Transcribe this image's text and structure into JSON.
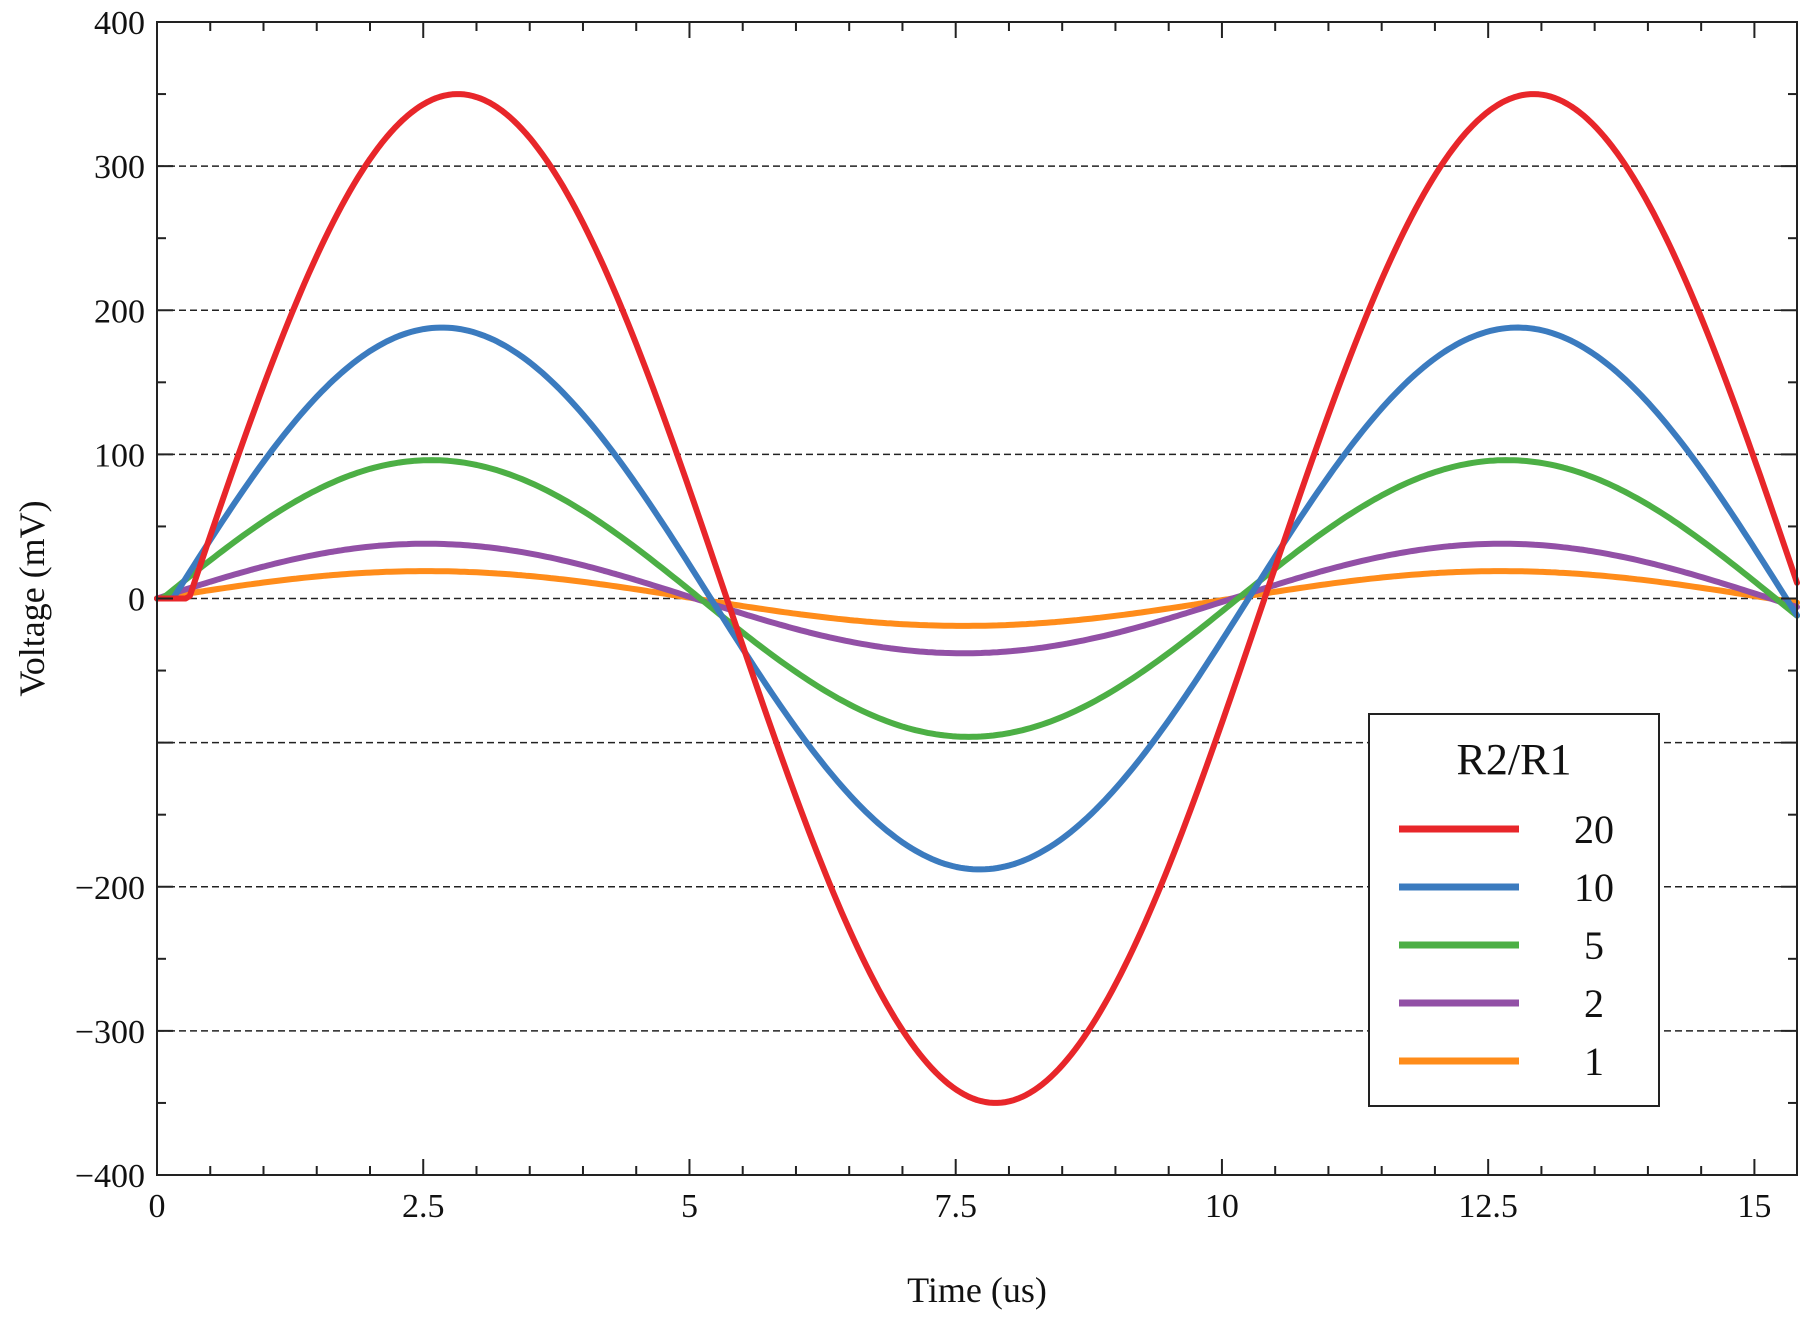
{
  "chart_data": {
    "type": "line",
    "title": "",
    "xlabel": "Time (us)",
    "ylabel": "Voltage (mV)",
    "xlim": [
      0,
      15.4
    ],
    "ylim": [
      -400,
      400
    ],
    "x_ticks": [
      0,
      2.5,
      5,
      7.5,
      10,
      12.5,
      15
    ],
    "x_tick_labels": [
      "0",
      "2.5",
      "5",
      "7.5",
      "10",
      "12.5",
      "15"
    ],
    "y_ticks": [
      -400,
      -300,
      -200,
      -100,
      0,
      100,
      200,
      300,
      400
    ],
    "y_tick_labels": [
      "−400",
      "−300",
      "−200",
      "",
      "0",
      "100",
      "200",
      "300",
      "400"
    ],
    "gridlines_y": [
      -300,
      -200,
      -100,
      0,
      100,
      200,
      300
    ],
    "grid": "horizontal dashed",
    "legend": {
      "title": "R2/R1",
      "placement": "bottom-right"
    },
    "period_us": 10.1,
    "series": [
      {
        "name": "20",
        "amplitude_mV": 350,
        "phase_lag_us": 0.3,
        "color": "#e8262a"
      },
      {
        "name": "10",
        "amplitude_mV": 188,
        "phase_lag_us": 0.15,
        "color": "#3b7bbf"
      },
      {
        "name": "5",
        "amplitude_mV": 96,
        "phase_lag_us": 0.05,
        "color": "#4caf45"
      },
      {
        "name": "2",
        "amplitude_mV": 38,
        "phase_lag_us": 0.0,
        "color": "#9250a6"
      },
      {
        "name": "1",
        "amplitude_mV": 19,
        "phase_lag_us": 0.0,
        "color": "#ff8c1a"
      }
    ]
  }
}
